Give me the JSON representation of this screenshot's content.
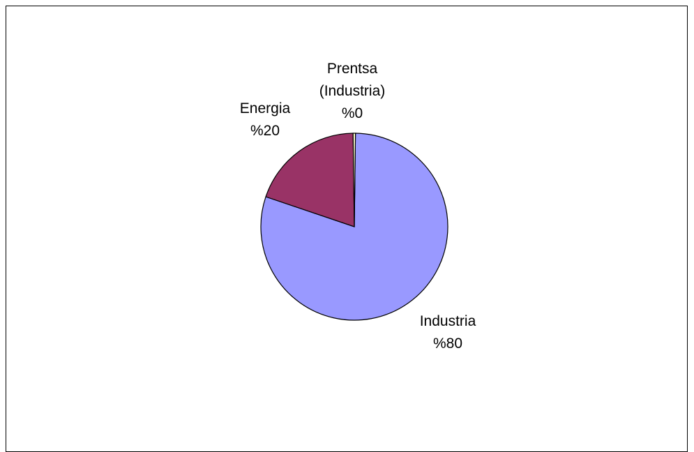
{
  "chart_data": {
    "type": "pie",
    "title": "",
    "slices": [
      {
        "label": "Industria",
        "percent_label": "%80",
        "value": 80,
        "color": "#9999ff"
      },
      {
        "label": "Energia",
        "percent_label": "%20",
        "value": 19.6,
        "color": "#993366"
      },
      {
        "label": "Prentsa (Industria)",
        "label_lines": [
          "Prentsa",
          "(Industria)"
        ],
        "percent_label": "%0",
        "value": 0.4,
        "color": "#ffffcc"
      }
    ],
    "legend": "none"
  }
}
